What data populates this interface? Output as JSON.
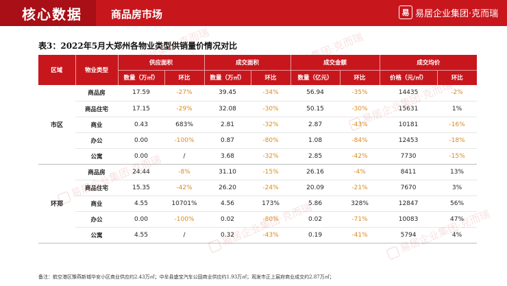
{
  "header": {
    "title": "核心数据",
    "section": "商品房市场",
    "logo_mark": "易",
    "logo_text": "易居企业集团·克而瑞"
  },
  "table": {
    "caption": "表3：2022年5月大郑州各物业类型供销量价情况对比",
    "head_groups": [
      "供应面积",
      "成交面积",
      "成交金额",
      "成交均价"
    ],
    "head_region": "区域",
    "head_type": "物业类型",
    "sub_headers": [
      "数量（万㎡）",
      "环比",
      "数量（万㎡）",
      "环比",
      "数量（亿元）",
      "环比",
      "价格（元/㎡）",
      "环比"
    ],
    "groups": [
      {
        "region": "市区",
        "rows": [
          {
            "type": "商品房",
            "cells": [
              "17.59",
              "-27%",
              "39.45",
              "-34%",
              "56.94",
              "-35%",
              "14435",
              "-2%"
            ]
          },
          {
            "type": "商品住宅",
            "cells": [
              "17.15",
              "-29%",
              "32.08",
              "-30%",
              "50.15",
              "-30%",
              "15631",
              "1%"
            ]
          },
          {
            "type": "商业",
            "cells": [
              "0.43",
              "683%",
              "2.81",
              "-32%",
              "2.87",
              "-43%",
              "10181",
              "-16%"
            ]
          },
          {
            "type": "办公",
            "cells": [
              "0.00",
              "-100%",
              "0.87",
              "-80%",
              "1.08",
              "-84%",
              "12453",
              "-18%"
            ]
          },
          {
            "type": "公寓",
            "cells": [
              "0.00",
              "/",
              "3.68",
              "-32%",
              "2.85",
              "-42%",
              "7730",
              "-15%"
            ]
          }
        ]
      },
      {
        "region": "环郑",
        "rows": [
          {
            "type": "商品房",
            "cells": [
              "24.44",
              "-8%",
              "31.10",
              "-15%",
              "26.16",
              "-4%",
              "8411",
              "13%"
            ]
          },
          {
            "type": "商品住宅",
            "cells": [
              "15.35",
              "-42%",
              "26.20",
              "-24%",
              "20.09",
              "-21%",
              "7670",
              "3%"
            ]
          },
          {
            "type": "商业",
            "cells": [
              "4.55",
              "10701%",
              "4.56",
              "173%",
              "5.86",
              "328%",
              "12847",
              "56%"
            ]
          },
          {
            "type": "办公",
            "cells": [
              "0.00",
              "-100%",
              "0.02",
              "-80%",
              "0.02",
              "-71%",
              "10083",
              "47%"
            ]
          },
          {
            "type": "公寓",
            "cells": [
              "4.55",
              "/",
              "0.32",
              "-43%",
              "0.19",
              "-41%",
              "5794",
              "4%"
            ]
          }
        ]
      }
    ]
  },
  "note": "备注：航空港区豫燕新城华安小区商业供应约2.43万㎡；中牟县盛宝汽车公园商业供应约1.93万㎡；观发市正上宸府商业成交约2.87万㎡；",
  "watermark_text": "易居企业集团·克而瑞",
  "colors": {
    "brand_red": "#c8161d",
    "negative": "#d98a1f"
  }
}
